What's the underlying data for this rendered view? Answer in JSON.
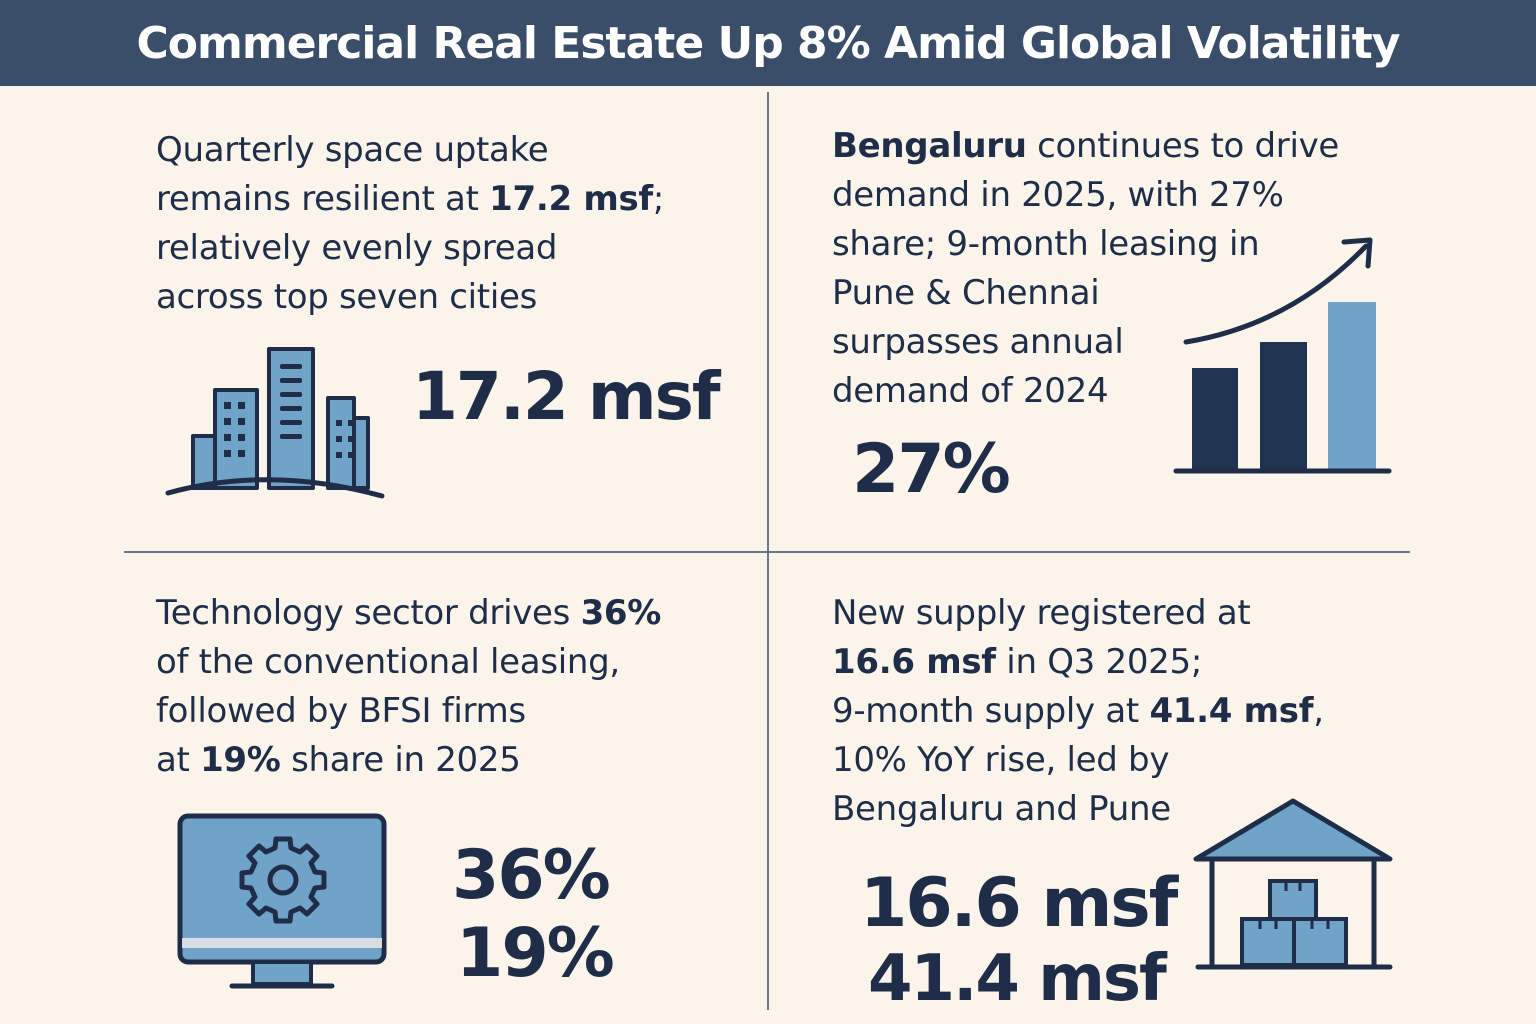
{
  "title": "Commercial Real Estate Up 8% Amid Global Volatility",
  "panels": {
    "top_left": {
      "line1": "Quarterly space uptake",
      "line2_pre": "remains resilient at ",
      "line2_bold": "17.2 msf",
      "line2_post": ";",
      "line3": "relatively evenly spread",
      "line4": "across top seven cities",
      "stat": "17.2 msf",
      "icon": "city-buildings-icon"
    },
    "top_right": {
      "line1_bold": "Bengaluru",
      "line1_post": " continues to drive",
      "line2": "demand in 2025, with 27%",
      "line3": "share; 9-month leasing in",
      "line4": "Pune & Chennai",
      "line5": "surpasses annual",
      "line6": "demand of 2024",
      "stat": "27%",
      "icon": "bar-chart-growth-icon"
    },
    "bottom_left": {
      "line1_pre": "Technology sector drives ",
      "line1_bold": "36%",
      "line2": "of the conventional leasing,",
      "line3": "followed by BFSI firms",
      "line4_pre": "at ",
      "line4_bold": "19%",
      "line4_post": " share in 2025",
      "stat1": "36%",
      "stat2": "19%",
      "icon": "monitor-gear-icon"
    },
    "bottom_right": {
      "line1": "New supply registered at",
      "line2_bold": "16.6 msf",
      "line2_post": " in Q3 2025;",
      "line3_pre": "9-month supply at ",
      "line3_bold": "41.4 msf",
      "line3_post": ",",
      "line4": "10% YoY rise, led by",
      "line5": "Bengaluru and Pune",
      "stat1": "16.6 msf",
      "stat2": "41.4 msf",
      "icon": "warehouse-boxes-icon"
    }
  },
  "colors": {
    "header_bg": "#3a4d69",
    "page_bg": "#fbf4ea",
    "text": "#1f2d48",
    "accent_blue": "#6fa3c8",
    "bar_dark": "#1f3250",
    "divider": "#6d7788"
  }
}
